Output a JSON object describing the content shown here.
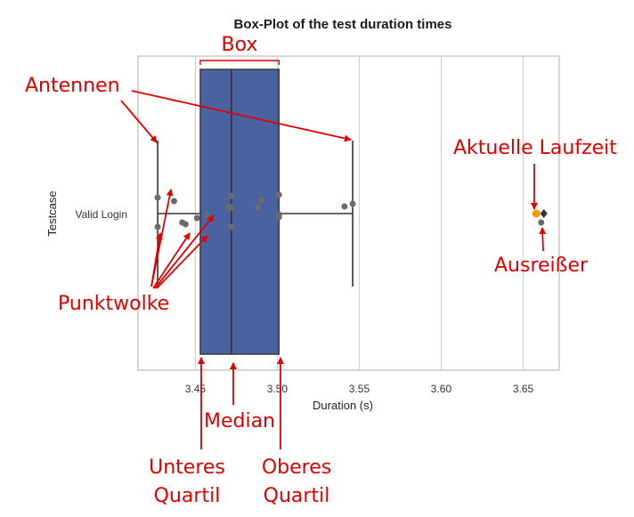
{
  "chart_data": {
    "type": "box",
    "title": "Box-Plot of the test duration times",
    "xlabel": "Duration (s)",
    "ylabel": "Testcase",
    "xlim": [
      3.415,
      3.672
    ],
    "x_ticks": [
      3.45,
      3.5,
      3.55,
      3.6,
      3.65
    ],
    "x_tick_labels": [
      "3.45",
      "3.50",
      "3.55",
      "3.60",
      "3.65"
    ],
    "grid": true,
    "category": "Valid Login",
    "box": {
      "whisker_low": 3.427,
      "q1": 3.453,
      "median": 3.472,
      "q3": 3.501,
      "whisker_high": 3.546,
      "outliers": [
        3.661
      ],
      "color": "#4a63a0"
    },
    "points": [
      {
        "x": 3.427,
        "y": 0.18
      },
      {
        "x": 3.437,
        "y": 0.14
      },
      {
        "x": 3.427,
        "y": -0.15
      },
      {
        "x": 3.444,
        "y": -0.12
      },
      {
        "x": 3.442,
        "y": -0.1
      },
      {
        "x": 3.451,
        "y": -0.05
      },
      {
        "x": 3.457,
        "y": -0.01
      },
      {
        "x": 3.47,
        "y": 0.07
      },
      {
        "x": 3.472,
        "y": 0.07
      },
      {
        "x": 3.472,
        "y": 0.2
      },
      {
        "x": 3.472,
        "y": -0.15
      },
      {
        "x": 3.49,
        "y": 0.15
      },
      {
        "x": 3.488,
        "y": 0.07
      },
      {
        "x": 3.501,
        "y": 0.21
      },
      {
        "x": 3.501,
        "y": -0.01
      },
      {
        "x": 3.501,
        "y": -0.04
      },
      {
        "x": 3.541,
        "y": 0.08
      },
      {
        "x": 3.546,
        "y": 0.11
      },
      {
        "x": 3.661,
        "y": -0.1
      }
    ],
    "current_value": {
      "x": 3.658,
      "color": "#f59b00"
    },
    "annotation_color": "#e00000",
    "annotations": [
      {
        "key": "box",
        "text": "Box"
      },
      {
        "key": "antennen",
        "text": "Antennen"
      },
      {
        "key": "aktuelle",
        "text": "Aktuelle Laufzeit"
      },
      {
        "key": "ausreisser",
        "text": "Ausreißer"
      },
      {
        "key": "punktwolke",
        "text": "Punktwolke"
      },
      {
        "key": "median",
        "text": "Median"
      },
      {
        "key": "unteres",
        "lines": [
          "Unteres",
          "Quartil"
        ]
      },
      {
        "key": "oberes",
        "lines": [
          "Oberes",
          "Quartil"
        ]
      }
    ]
  }
}
